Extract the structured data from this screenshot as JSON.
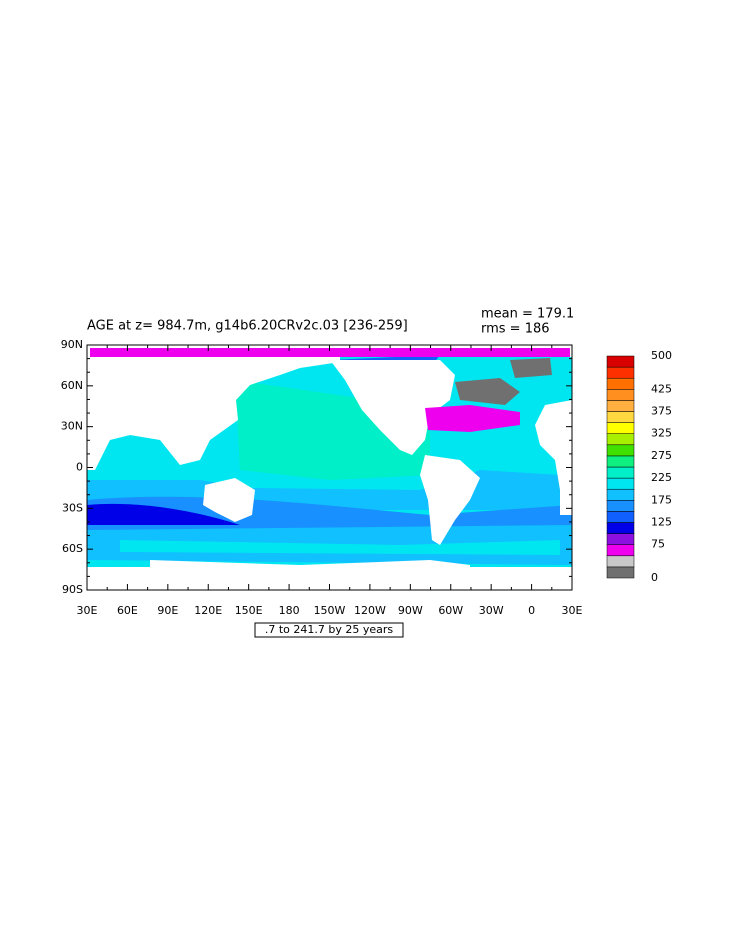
{
  "title": "AGE at z= 984.7m, g14b6.20CRv2c.03 [236-259]",
  "stats": [
    "mean = 179.1",
    "rms = 186"
  ],
  "x_tick_labels": [
    "30E",
    "60E",
    "90E",
    "120E",
    "150E",
    "180",
    "150W",
    "120W",
    "90W",
    "60W",
    "30W",
    "0",
    "30E"
  ],
  "y_tick_labels": [
    "90N",
    "60N",
    "30N",
    "0",
    "30S",
    "60S",
    "90S"
  ],
  "contour_note": ".7 to 241.7 by 25 years",
  "colorbar": {
    "lim": [
      0,
      500
    ],
    "ticks": [
      0,
      75,
      125,
      175,
      225,
      275,
      325,
      375,
      425,
      500
    ],
    "colors": [
      "#707070",
      "#c8c8c8",
      "#ee00ee",
      "#8c10e0",
      "#0000e8",
      "#1060ff",
      "#1890ff",
      "#10c0ff",
      "#00e6f0",
      "#00eec8",
      "#10f080",
      "#40e000",
      "#a8f000",
      "#ffff00",
      "#ffd840",
      "#ffb040",
      "#ff9020",
      "#ff7000",
      "#ff3000",
      "#d80000"
    ]
  }
}
